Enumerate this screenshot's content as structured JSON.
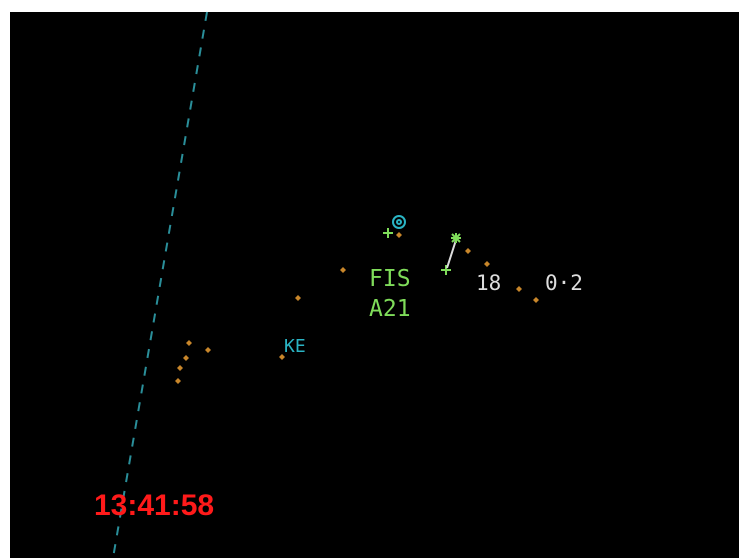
{
  "radar": {
    "track": {
      "callsign": "FIS",
      "code": "A21",
      "level": "18",
      "speed": "0·2"
    },
    "fix_label": "KE",
    "clock": "13:41:58"
  }
}
